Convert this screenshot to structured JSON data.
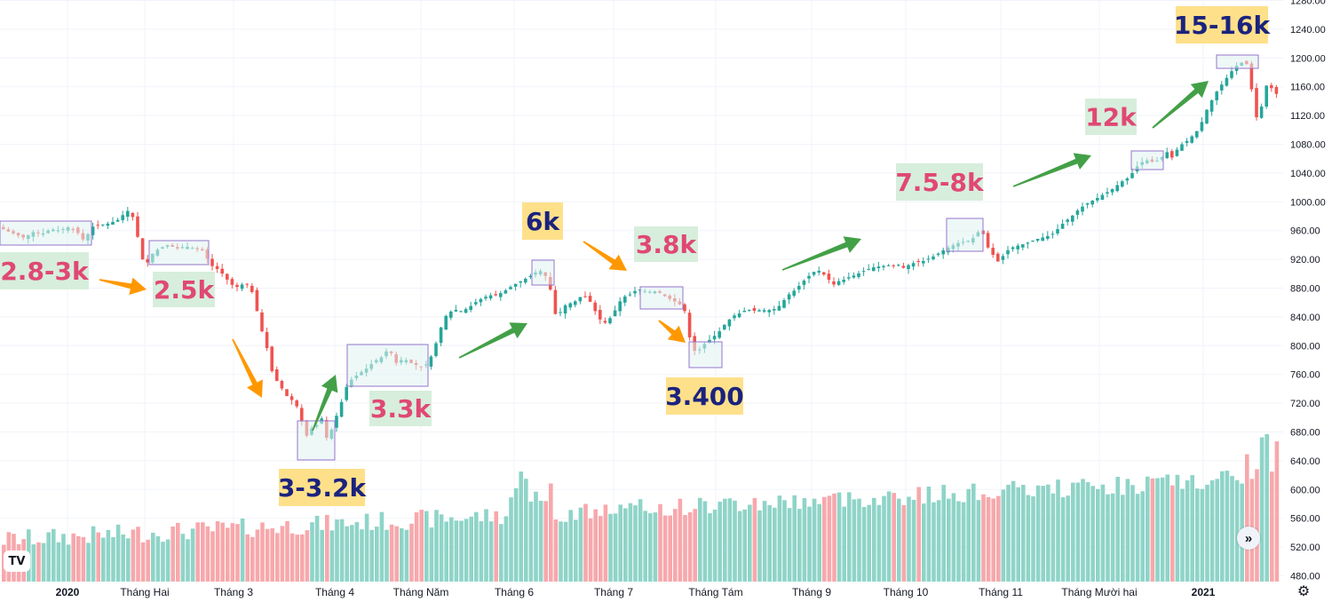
{
  "chart_data": {
    "type": "candlestick",
    "title": "",
    "price_axis": {
      "range": [
        470,
        1285
      ],
      "ticks": [
        480,
        520,
        560,
        600,
        640,
        680,
        720,
        760,
        800,
        840,
        880,
        920,
        960,
        1000,
        1040,
        1080,
        1120,
        1160,
        1200,
        1240,
        1280
      ]
    },
    "time_axis": {
      "labels": [
        "2020",
        "Tháng Hai",
        "Tháng 3",
        "Tháng 4",
        "Tháng Năm",
        "Tháng 6",
        "Tháng 7",
        "Tháng Tám",
        "Tháng 9",
        "Tháng 10",
        "Tháng 11",
        "Tháng Mười hai",
        "2021"
      ]
    },
    "price_path": [
      [
        0,
        965
      ],
      [
        8,
        960
      ],
      [
        18,
        955
      ],
      [
        28,
        950
      ],
      [
        38,
        958
      ],
      [
        48,
        955
      ],
      [
        58,
        962
      ],
      [
        68,
        960
      ],
      [
        78,
        965
      ],
      [
        88,
        958
      ],
      [
        96,
        945
      ],
      [
        104,
        965
      ],
      [
        114,
        968
      ],
      [
        124,
        970
      ],
      [
        134,
        975
      ],
      [
        142,
        985
      ],
      [
        148,
        990
      ],
      [
        154,
        962
      ],
      [
        160,
        930
      ],
      [
        164,
        905
      ],
      [
        170,
        925
      ],
      [
        180,
        935
      ],
      [
        190,
        940
      ],
      [
        200,
        935
      ],
      [
        210,
        938
      ],
      [
        220,
        935
      ],
      [
        230,
        932
      ],
      [
        238,
        912
      ],
      [
        248,
        905
      ],
      [
        258,
        890
      ],
      [
        266,
        880
      ],
      [
        272,
        885
      ],
      [
        280,
        885
      ],
      [
        286,
        872
      ],
      [
        290,
        850
      ],
      [
        296,
        820
      ],
      [
        302,
        795
      ],
      [
        308,
        760
      ],
      [
        316,
        745
      ],
      [
        324,
        730
      ],
      [
        332,
        722
      ],
      [
        338,
        710
      ],
      [
        342,
        688
      ],
      [
        348,
        670
      ],
      [
        352,
        685
      ],
      [
        358,
        690
      ],
      [
        364,
        700
      ],
      [
        370,
        665
      ],
      [
        376,
        690
      ],
      [
        384,
        715
      ],
      [
        390,
        740
      ],
      [
        396,
        752
      ],
      [
        402,
        758
      ],
      [
        410,
        765
      ],
      [
        416,
        770
      ],
      [
        422,
        778
      ],
      [
        430,
        783
      ],
      [
        436,
        792
      ],
      [
        440,
        795
      ],
      [
        446,
        775
      ],
      [
        452,
        780
      ],
      [
        458,
        780
      ],
      [
        464,
        776
      ],
      [
        472,
        772
      ],
      [
        478,
        770
      ],
      [
        484,
        778
      ],
      [
        490,
        795
      ],
      [
        496,
        820
      ],
      [
        502,
        840
      ],
      [
        508,
        847
      ],
      [
        514,
        850
      ],
      [
        520,
        848
      ],
      [
        528,
        852
      ],
      [
        536,
        860
      ],
      [
        544,
        866
      ],
      [
        552,
        870
      ],
      [
        560,
        870
      ],
      [
        568,
        875
      ],
      [
        574,
        880
      ],
      [
        580,
        885
      ],
      [
        588,
        890
      ],
      [
        596,
        895
      ],
      [
        602,
        900
      ],
      [
        608,
        905
      ],
      [
        614,
        900
      ],
      [
        620,
        885
      ],
      [
        624,
        850
      ],
      [
        628,
        840
      ],
      [
        634,
        850
      ],
      [
        640,
        860
      ],
      [
        646,
        858
      ],
      [
        652,
        866
      ],
      [
        658,
        870
      ],
      [
        664,
        865
      ],
      [
        668,
        855
      ],
      [
        674,
        842
      ],
      [
        680,
        830
      ],
      [
        686,
        835
      ],
      [
        692,
        845
      ],
      [
        698,
        860
      ],
      [
        704,
        868
      ],
      [
        712,
        872
      ],
      [
        718,
        878
      ],
      [
        724,
        878
      ],
      [
        730,
        874
      ],
      [
        736,
        876
      ],
      [
        742,
        875
      ],
      [
        748,
        870
      ],
      [
        754,
        866
      ],
      [
        760,
        862
      ],
      [
        766,
        858
      ],
      [
        772,
        848
      ],
      [
        776,
        822
      ],
      [
        780,
        796
      ],
      [
        786,
        790
      ],
      [
        792,
        800
      ],
      [
        798,
        806
      ],
      [
        804,
        812
      ],
      [
        810,
        818
      ],
      [
        816,
        828
      ],
      [
        822,
        836
      ],
      [
        828,
        842
      ],
      [
        834,
        845
      ],
      [
        840,
        849
      ],
      [
        846,
        850
      ],
      [
        852,
        848
      ],
      [
        858,
        850
      ],
      [
        864,
        849
      ],
      [
        870,
        850
      ],
      [
        876,
        852
      ],
      [
        882,
        860
      ],
      [
        888,
        870
      ],
      [
        894,
        875
      ],
      [
        900,
        882
      ],
      [
        906,
        890
      ],
      [
        912,
        897
      ],
      [
        918,
        903
      ],
      [
        922,
        905
      ],
      [
        928,
        900
      ],
      [
        934,
        892
      ],
      [
        940,
        885
      ],
      [
        946,
        890
      ],
      [
        952,
        892
      ],
      [
        958,
        896
      ],
      [
        964,
        898
      ],
      [
        970,
        902
      ],
      [
        976,
        905
      ],
      [
        982,
        908
      ],
      [
        988,
        910
      ],
      [
        994,
        910
      ],
      [
        1000,
        912
      ],
      [
        1006,
        911
      ],
      [
        1012,
        913
      ],
      [
        1018,
        908
      ],
      [
        1024,
        912
      ],
      [
        1030,
        915
      ],
      [
        1036,
        917
      ],
      [
        1042,
        918
      ],
      [
        1048,
        922
      ],
      [
        1054,
        925
      ],
      [
        1060,
        930
      ],
      [
        1066,
        935
      ],
      [
        1072,
        938
      ],
      [
        1078,
        942
      ],
      [
        1084,
        944
      ],
      [
        1090,
        945
      ],
      [
        1096,
        948
      ],
      [
        1100,
        956
      ],
      [
        1106,
        960
      ],
      [
        1110,
        950
      ],
      [
        1114,
        935
      ],
      [
        1120,
        925
      ],
      [
        1126,
        915
      ],
      [
        1132,
        928
      ],
      [
        1138,
        935
      ],
      [
        1144,
        938
      ],
      [
        1150,
        940
      ],
      [
        1156,
        942
      ],
      [
        1162,
        945
      ],
      [
        1168,
        948
      ],
      [
        1174,
        950
      ],
      [
        1180,
        952
      ],
      [
        1186,
        955
      ],
      [
        1192,
        962
      ],
      [
        1198,
        970
      ],
      [
        1204,
        976
      ],
      [
        1210,
        982
      ],
      [
        1216,
        990
      ],
      [
        1222,
        995
      ],
      [
        1228,
        1000
      ],
      [
        1234,
        1003
      ],
      [
        1240,
        1008
      ],
      [
        1246,
        1012
      ],
      [
        1252,
        1016
      ],
      [
        1258,
        1022
      ],
      [
        1264,
        1028
      ],
      [
        1270,
        1032
      ],
      [
        1276,
        1040
      ],
      [
        1282,
        1050
      ],
      [
        1288,
        1056
      ],
      [
        1294,
        1058
      ],
      [
        1300,
        1055
      ],
      [
        1306,
        1058
      ],
      [
        1312,
        1065
      ],
      [
        1316,
        1070
      ],
      [
        1320,
        1060
      ],
      [
        1326,
        1072
      ],
      [
        1332,
        1080
      ],
      [
        1338,
        1085
      ],
      [
        1344,
        1092
      ],
      [
        1350,
        1100
      ],
      [
        1356,
        1115
      ],
      [
        1360,
        1128
      ],
      [
        1366,
        1142
      ],
      [
        1372,
        1155
      ],
      [
        1378,
        1165
      ],
      [
        1384,
        1175
      ],
      [
        1390,
        1185
      ],
      [
        1396,
        1192
      ],
      [
        1402,
        1195
      ],
      [
        1406,
        1190
      ],
      [
        1410,
        1160
      ],
      [
        1414,
        1125
      ],
      [
        1418,
        1110
      ],
      [
        1422,
        1135
      ],
      [
        1426,
        1160
      ],
      [
        1430,
        1165
      ],
      [
        1436,
        1150
      ]
    ],
    "annotations": [
      {
        "text": "2.8-3k",
        "style": "green"
      },
      {
        "text": "2.5k",
        "style": "green"
      },
      {
        "text": "3-3.2k",
        "style": "yellow"
      },
      {
        "text": "3.3k",
        "style": "green"
      },
      {
        "text": "6k",
        "style": "yellow"
      },
      {
        "text": "3.8k",
        "style": "green"
      },
      {
        "text": "3.400",
        "style": "yellow"
      },
      {
        "text": "7.5-8k",
        "style": "green"
      },
      {
        "text": "12k",
        "style": "green"
      },
      {
        "text": "15-16k",
        "style": "yellow"
      }
    ],
    "grid": true,
    "colors": {
      "up": "#26a69a",
      "down": "#ef5350",
      "vol_up": "#8fd4c8",
      "vol_down": "#f7a8ac",
      "box_fill": "#e0f2f1",
      "box_stroke": "#9575cd",
      "arrow_orange": "#ff9800",
      "arrow_green": "#43a047",
      "label_green_bg": "#d7eedc",
      "label_yellow_bg": "#ffe08a",
      "label_pink_text": "#e04873",
      "label_navy_text": "#1a237e"
    }
  },
  "ui": {
    "logo_text": "TV",
    "scroll_icon": "»",
    "settings_icon": "⚙"
  }
}
